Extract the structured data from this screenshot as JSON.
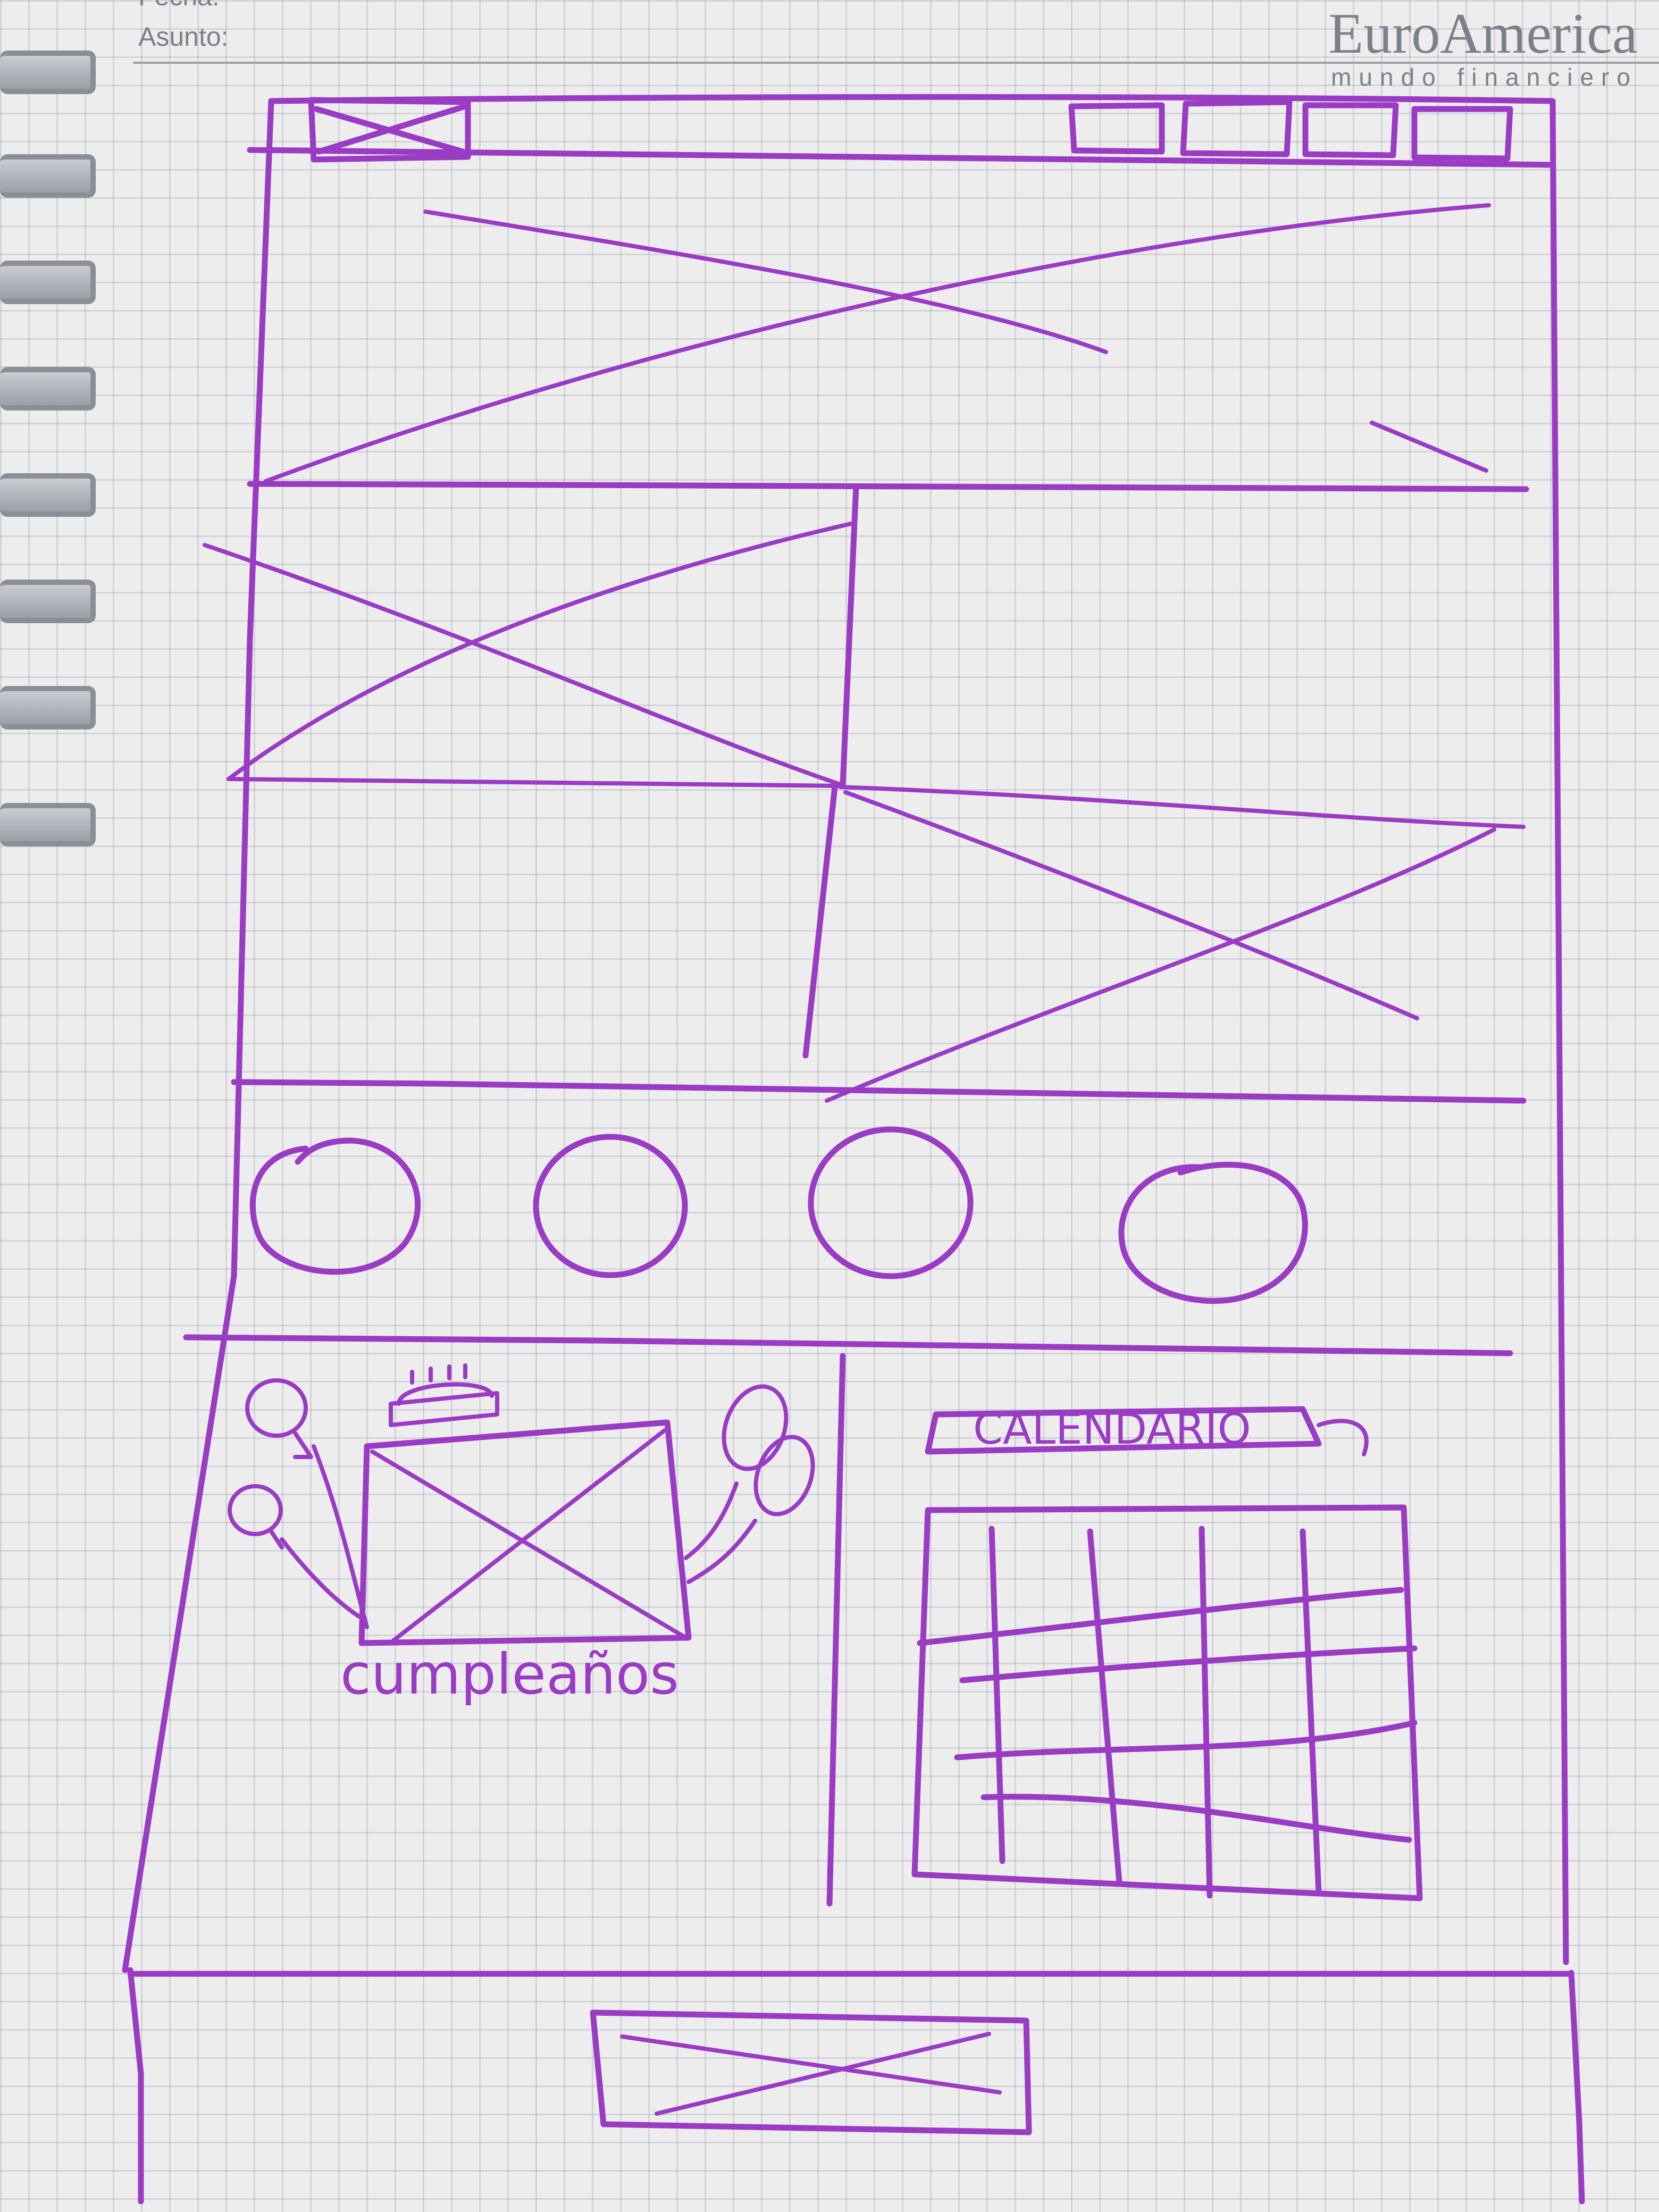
{
  "sheet": {
    "fecha_label": "Fecha:",
    "asunto_label": "Asunto:",
    "brand_name": "EuroAmerica",
    "brand_tagline": "mundo financiero"
  },
  "wireframe": {
    "top_nav": {
      "logo": "image-placeholder",
      "nav_buttons": 4
    },
    "hero": "image-placeholder",
    "feature_images": [
      "image-placeholder",
      "image-placeholder"
    ],
    "circle_icons": 4,
    "birthday": {
      "label": "cumpleaños",
      "image": "image-placeholder"
    },
    "calendar": {
      "title": "CALENDARIO",
      "rows": 4,
      "columns": 5
    },
    "footer": {
      "logo": "image-placeholder"
    }
  },
  "colors": {
    "ink": "#9a3bc4",
    "paper": "#ededee",
    "grid": "#787d87"
  }
}
